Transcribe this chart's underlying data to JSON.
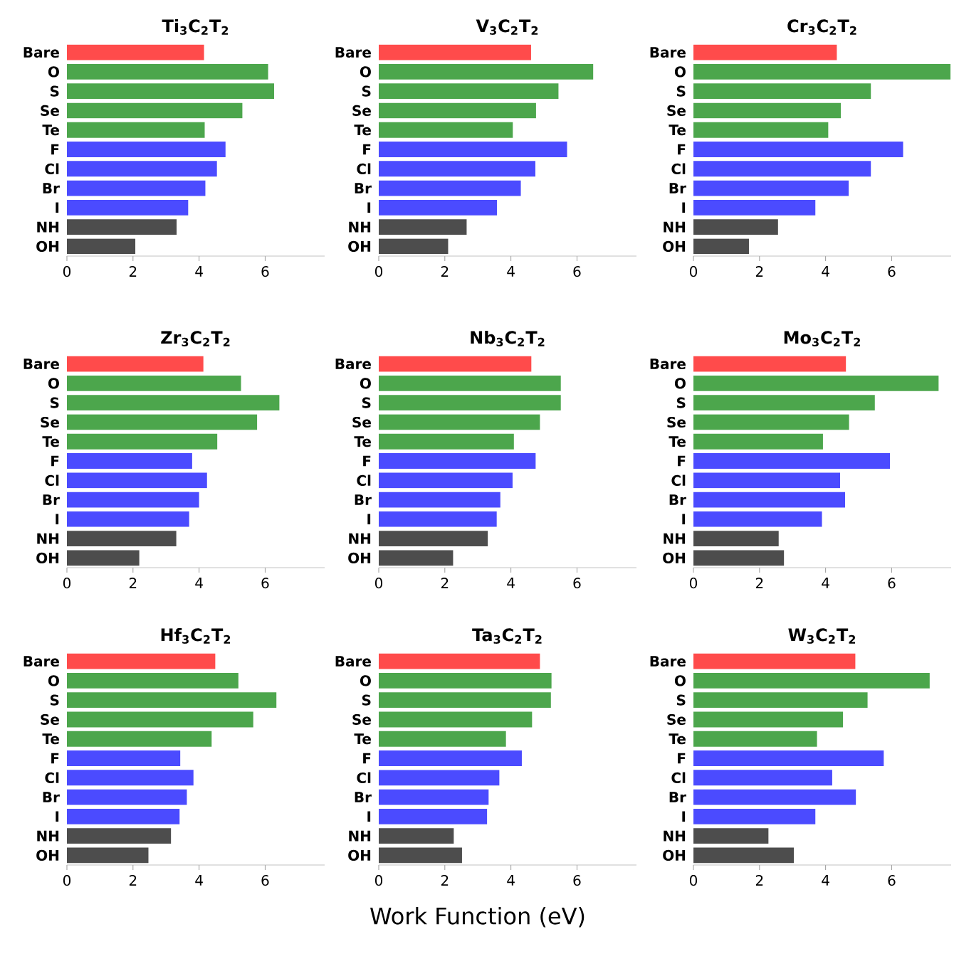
{
  "chart_data": [
    {
      "type": "bar",
      "orientation": "horizontal",
      "title": "Ti$_{3}$C$_{2}$T$_{2}$",
      "categories": [
        "Bare",
        "O",
        "S",
        "Se",
        "Te",
        "F",
        "Cl",
        "Br",
        "I",
        "NH",
        "OH"
      ],
      "values": [
        4.15,
        6.09,
        6.27,
        5.31,
        4.17,
        4.8,
        4.54,
        4.19,
        3.67,
        3.32,
        2.07
      ],
      "colors": [
        "#ff4b4b",
        "#4ca64c",
        "#4ca64c",
        "#4ca64c",
        "#4ca64c",
        "#4b4bff",
        "#4b4bff",
        "#4b4bff",
        "#4b4bff",
        "#4d4d4d",
        "#4d4d4d"
      ],
      "xlim": [
        0,
        7.8
      ],
      "xticks": [
        0,
        2,
        4,
        6
      ]
    },
    {
      "type": "bar",
      "orientation": "horizontal",
      "title": "V$_{3}$C$_{2}$T$_{2}$",
      "categories": [
        "Bare",
        "O",
        "S",
        "Se",
        "Te",
        "F",
        "Cl",
        "Br",
        "I",
        "NH",
        "OH"
      ],
      "values": [
        4.61,
        6.49,
        5.44,
        4.76,
        4.06,
        5.7,
        4.74,
        4.3,
        3.58,
        2.66,
        2.1
      ],
      "colors": [
        "#ff4b4b",
        "#4ca64c",
        "#4ca64c",
        "#4ca64c",
        "#4ca64c",
        "#4b4bff",
        "#4b4bff",
        "#4b4bff",
        "#4b4bff",
        "#4d4d4d",
        "#4d4d4d"
      ],
      "xlim": [
        0,
        7.8
      ],
      "xticks": [
        0,
        2,
        4,
        6
      ]
    },
    {
      "type": "bar",
      "orientation": "horizontal",
      "title": "Cr$_{3}$C$_{2}$T$_{2}$",
      "categories": [
        "Bare",
        "O",
        "S",
        "Se",
        "Te",
        "F",
        "Cl",
        "Br",
        "I",
        "NH",
        "OH"
      ],
      "values": [
        4.34,
        7.78,
        5.37,
        4.46,
        4.08,
        6.35,
        5.37,
        4.7,
        3.69,
        2.56,
        1.68
      ],
      "colors": [
        "#ff4b4b",
        "#4ca64c",
        "#4ca64c",
        "#4ca64c",
        "#4ca64c",
        "#4b4bff",
        "#4b4bff",
        "#4b4bff",
        "#4b4bff",
        "#4d4d4d",
        "#4d4d4d"
      ],
      "xlim": [
        0,
        7.8
      ],
      "xticks": [
        0,
        2,
        4,
        6
      ]
    },
    {
      "type": "bar",
      "orientation": "horizontal",
      "title": "Zr$_{3}$C$_{2}$T$_{2}$",
      "categories": [
        "Bare",
        "O",
        "S",
        "Se",
        "Te",
        "F",
        "Cl",
        "Br",
        "I",
        "NH",
        "OH"
      ],
      "values": [
        4.13,
        5.27,
        6.43,
        5.76,
        4.55,
        3.79,
        4.24,
        4.0,
        3.7,
        3.31,
        2.19
      ],
      "colors": [
        "#ff4b4b",
        "#4ca64c",
        "#4ca64c",
        "#4ca64c",
        "#4ca64c",
        "#4b4bff",
        "#4b4bff",
        "#4b4bff",
        "#4b4bff",
        "#4d4d4d",
        "#4d4d4d"
      ],
      "xlim": [
        0,
        7.8
      ],
      "xticks": [
        0,
        2,
        4,
        6
      ]
    },
    {
      "type": "bar",
      "orientation": "horizontal",
      "title": "Nb$_{3}$C$_{2}$T$_{2}$",
      "categories": [
        "Bare",
        "O",
        "S",
        "Se",
        "Te",
        "F",
        "Cl",
        "Br",
        "I",
        "NH",
        "OH"
      ],
      "values": [
        4.62,
        5.51,
        5.51,
        4.88,
        4.09,
        4.75,
        4.05,
        3.68,
        3.57,
        3.3,
        2.25
      ],
      "colors": [
        "#ff4b4b",
        "#4ca64c",
        "#4ca64c",
        "#4ca64c",
        "#4ca64c",
        "#4b4bff",
        "#4b4bff",
        "#4b4bff",
        "#4b4bff",
        "#4d4d4d",
        "#4d4d4d"
      ],
      "xlim": [
        0,
        7.8
      ],
      "xticks": [
        0,
        2,
        4,
        6
      ]
    },
    {
      "type": "bar",
      "orientation": "horizontal",
      "title": "Mo$_{3}$C$_{2}$T$_{2}$",
      "categories": [
        "Bare",
        "O",
        "S",
        "Se",
        "Te",
        "F",
        "Cl",
        "Br",
        "I",
        "NH",
        "OH"
      ],
      "values": [
        4.62,
        7.42,
        5.49,
        4.71,
        3.92,
        5.95,
        4.44,
        4.59,
        3.89,
        2.58,
        2.74
      ],
      "colors": [
        "#ff4b4b",
        "#4ca64c",
        "#4ca64c",
        "#4ca64c",
        "#4ca64c",
        "#4b4bff",
        "#4b4bff",
        "#4b4bff",
        "#4b4bff",
        "#4d4d4d",
        "#4d4d4d"
      ],
      "xlim": [
        0,
        7.8
      ],
      "xticks": [
        0,
        2,
        4,
        6
      ]
    },
    {
      "type": "bar",
      "orientation": "horizontal",
      "title": "Hf$_{3}$C$_{2}$T$_{2}$",
      "categories": [
        "Bare",
        "O",
        "S",
        "Se",
        "Te",
        "F",
        "Cl",
        "Br",
        "I",
        "NH",
        "OH"
      ],
      "values": [
        4.49,
        5.19,
        6.34,
        5.64,
        4.38,
        3.43,
        3.83,
        3.63,
        3.41,
        3.15,
        2.47
      ],
      "colors": [
        "#ff4b4b",
        "#4ca64c",
        "#4ca64c",
        "#4ca64c",
        "#4ca64c",
        "#4b4bff",
        "#4b4bff",
        "#4b4bff",
        "#4b4bff",
        "#4d4d4d",
        "#4d4d4d"
      ],
      "xlim": [
        0,
        7.8
      ],
      "xticks": [
        0,
        2,
        4,
        6
      ]
    },
    {
      "type": "bar",
      "orientation": "horizontal",
      "title": "Ta$_{3}$C$_{2}$T$_{2}$",
      "xlabel": "Work Function (eV)",
      "categories": [
        "Bare",
        "O",
        "S",
        "Se",
        "Te",
        "F",
        "Cl",
        "Br",
        "I",
        "NH",
        "OH"
      ],
      "values": [
        4.88,
        5.23,
        5.21,
        4.64,
        3.85,
        4.33,
        3.65,
        3.33,
        3.28,
        2.27,
        2.52
      ],
      "colors": [
        "#ff4b4b",
        "#4ca64c",
        "#4ca64c",
        "#4ca64c",
        "#4ca64c",
        "#4b4bff",
        "#4b4bff",
        "#4b4bff",
        "#4b4bff",
        "#4d4d4d",
        "#4d4d4d"
      ],
      "xlim": [
        0,
        7.8
      ],
      "xticks": [
        0,
        2,
        4,
        6
      ]
    },
    {
      "type": "bar",
      "orientation": "horizontal",
      "title": "W$_{3}$C$_{2}$T$_{2}$",
      "categories": [
        "Bare",
        "O",
        "S",
        "Se",
        "Te",
        "F",
        "Cl",
        "Br",
        "I",
        "NH",
        "OH"
      ],
      "values": [
        4.9,
        7.15,
        5.27,
        4.53,
        3.74,
        5.76,
        4.2,
        4.92,
        3.69,
        2.27,
        3.04
      ],
      "colors": [
        "#ff4b4b",
        "#4ca64c",
        "#4ca64c",
        "#4ca64c",
        "#4ca64c",
        "#4b4bff",
        "#4b4bff",
        "#4b4bff",
        "#4b4bff",
        "#4d4d4d",
        "#4d4d4d"
      ],
      "xlim": [
        0,
        7.8
      ],
      "xticks": [
        0,
        2,
        4,
        6
      ]
    }
  ]
}
